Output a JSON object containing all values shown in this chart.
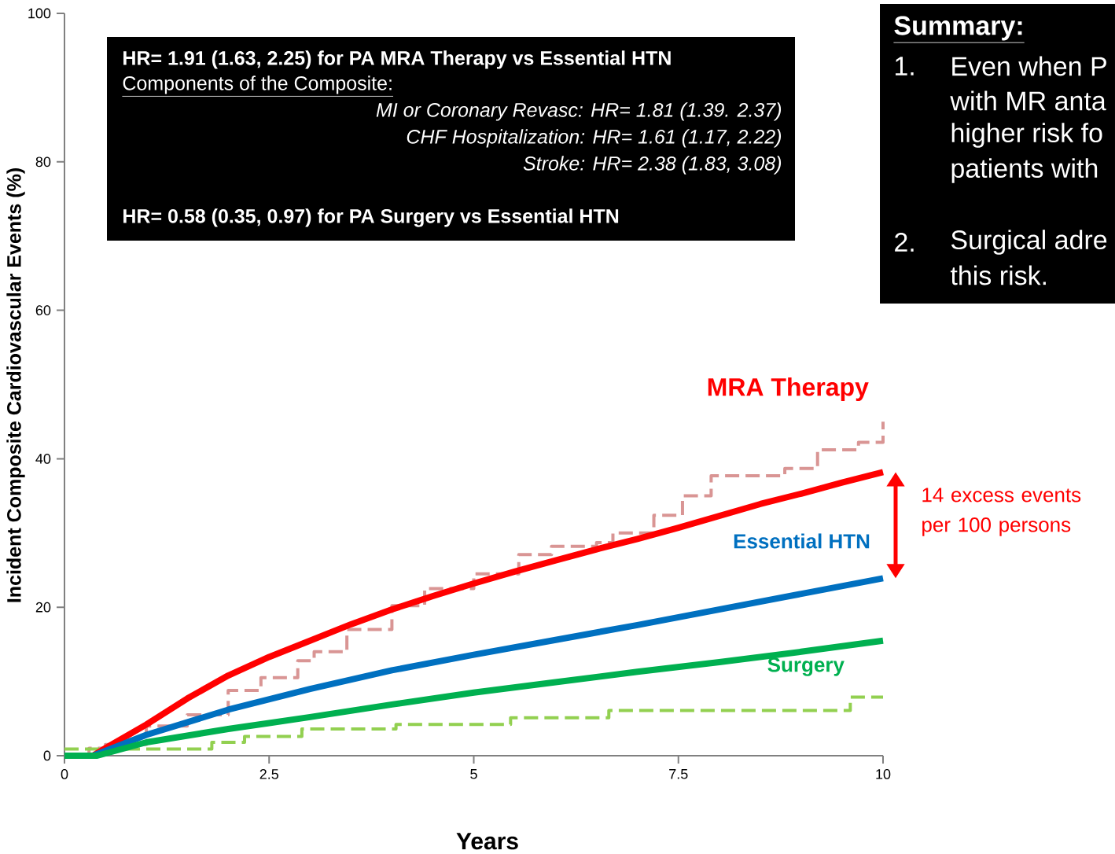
{
  "chart_data": {
    "type": "line",
    "xlabel": "Years",
    "ylabel": "Incident Composite Cardiovascular Events (%)",
    "xlim": [
      0,
      10
    ],
    "xticks": [
      0,
      2.5,
      5,
      7.5,
      10
    ],
    "ylim": [
      0,
      100
    ],
    "yticks": [
      0,
      20,
      40,
      60,
      80,
      100
    ],
    "marker": "none",
    "series": [
      {
        "type": "step",
        "line_style": "dashed",
        "color": "#d99594",
        "x": [
          0,
          0.3,
          0.5,
          1,
          1.5,
          2,
          2.4,
          2.85,
          3.05,
          3.45,
          4,
          4.4,
          5,
          5.55,
          5.95,
          6.5,
          6.7,
          7.2,
          7.55,
          7.9,
          8.8,
          9.2,
          9.7,
          10
        ],
        "values": [
          0,
          1,
          1.5,
          4,
          5.5,
          8.8,
          10.5,
          12.8,
          14,
          17,
          20.2,
          22.5,
          24.5,
          27.1,
          28.2,
          28.7,
          30,
          32.4,
          35,
          37.7,
          38.7,
          41.2,
          42.2,
          45
        ]
      },
      {
        "type": "step",
        "line_style": "dashed",
        "color": "#92d050",
        "x": [
          0,
          1.8,
          2.2,
          2.9,
          4.05,
          5.45,
          6.65,
          9.6,
          10
        ],
        "values": [
          0.9,
          1.8,
          2.6,
          3.6,
          4.2,
          5.1,
          6.1,
          7.9,
          7.9
        ]
      },
      {
        "name": "MRA Therapy",
        "line_style": "solid",
        "color": "#ff0000",
        "x": [
          0,
          0.35,
          0.5,
          1,
          1.5,
          2,
          2.5,
          3,
          3.5,
          4,
          4.5,
          5,
          5.5,
          6,
          6.5,
          7,
          7.5,
          8,
          8.5,
          9,
          9.5,
          10
        ],
        "values": [
          0,
          0,
          1,
          4.2,
          7.7,
          10.8,
          13.3,
          15.5,
          17.7,
          19.7,
          21.5,
          23.2,
          24.8,
          26.3,
          27.8,
          29.2,
          30.7,
          32.3,
          33.9,
          35.3,
          36.8,
          38.2
        ]
      },
      {
        "name": "Essential HTN",
        "line_style": "solid",
        "color": "#0070c0",
        "x": [
          0,
          0.35,
          1,
          2,
          3,
          4,
          5,
          6,
          7,
          8,
          9,
          10
        ],
        "values": [
          0,
          0,
          2.8,
          6.2,
          9,
          11.5,
          13.6,
          15.6,
          17.6,
          19.7,
          21.8,
          23.9
        ]
      },
      {
        "name": "Surgery",
        "line_style": "solid",
        "color": "#00b050",
        "x": [
          0,
          0.4,
          1,
          2,
          2.5,
          3,
          4,
          5,
          6,
          7,
          8,
          9,
          10
        ],
        "values": [
          0,
          0,
          1.8,
          3.6,
          4.4,
          5.2,
          6.9,
          8.5,
          9.9,
          11.3,
          12.6,
          14,
          15.5
        ]
      }
    ],
    "annotations": [
      "HR= 1.91 (1.63, 2.25) for PA MRA Therapy vs Essential HTN",
      "Components of the Composite:",
      "MI or Coronary Revasc: HR= 1.81 (1.39. 2.37)",
      "CHF Hospitalization: HR= 1.61 (1.17, 2.22)",
      "Stroke: HR= 2.38 (1.83, 3.08)",
      "HR= 0.58 (0.35, 0.97) for PA Surgery vs Essential HTN",
      "Summary:",
      "1.",
      "Even when P",
      "with MR anta",
      "higher risk fo",
      "patients with",
      "2.",
      "Surgical adre",
      "this risk.",
      "14 excess events per 100 persons"
    ]
  }
}
